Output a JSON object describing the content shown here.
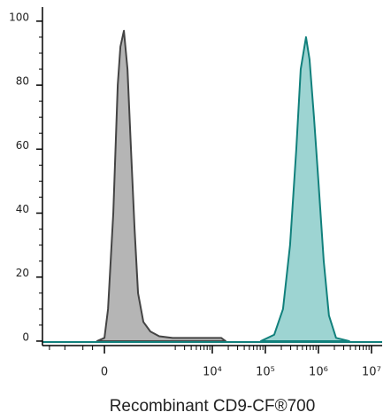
{
  "chart_data": {
    "type": "histogram-overlay",
    "xlabel": "Recombinant CD9-CF®700",
    "xscale": "logicle",
    "xlim": [
      -1360,
      15900000
    ],
    "ylim": [
      -1.4,
      104.4
    ],
    "yticks": [
      0,
      20,
      40,
      60,
      80,
      100
    ],
    "yminorticks": [
      5,
      10,
      15,
      25,
      30,
      35,
      45,
      50,
      55,
      65,
      70,
      75,
      85,
      90,
      95
    ],
    "xticks": [
      0,
      {
        "value": 10000,
        "label": "10⁴"
      },
      {
        "value": 100000,
        "label": "10⁵"
      },
      {
        "value": 1000000,
        "label": "10⁶"
      },
      {
        "value": 10000000,
        "label": "10⁷"
      }
    ],
    "xminorticks": [
      -1000,
      -500,
      -200,
      -100,
      2000,
      3000,
      4000,
      5000,
      6000,
      7000,
      8000,
      9000,
      20000,
      30000,
      40000,
      50000,
      60000,
      70000,
      80000,
      90000,
      200000,
      300000,
      400000,
      500000,
      600000,
      700000,
      800000,
      900000,
      2000000,
      3000000,
      4000000,
      5000000,
      6000000,
      7000000,
      8000000,
      9000000
    ],
    "series": [
      {
        "color": "#b5b5b5",
        "line_color": "#444444",
        "x": [
          -60,
          0,
          29,
          73,
          113,
          139,
          176,
          218,
          264,
          318,
          377,
          485,
          668,
          992,
          1780,
          4640,
          14700,
          17800
        ],
        "values": [
          0,
          1,
          10,
          40,
          80,
          92,
          97,
          85,
          60,
          35,
          15,
          6,
          3,
          1.5,
          1,
          1,
          1,
          0
        ]
      },
      {
        "color": "#9dd4d2",
        "line_color": "#11807c",
        "x": [
          82600,
          147000,
          215000,
          292000,
          383000,
          464000,
          584000,
          681000,
          825000,
          1000000,
          1260000,
          1580000,
          2150000,
          3800000
        ],
        "values": [
          0,
          2,
          10,
          30,
          60,
          85,
          95,
          88,
          70,
          50,
          25,
          8,
          1,
          0
        ]
      }
    ]
  }
}
